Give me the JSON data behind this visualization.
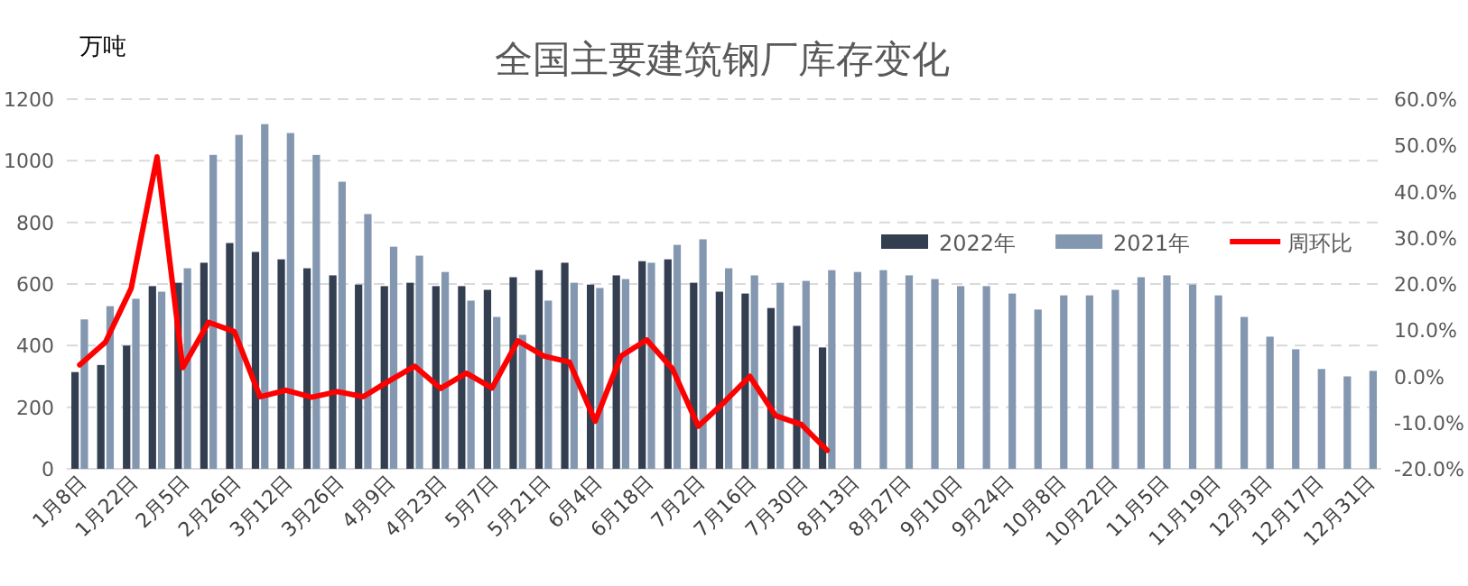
{
  "chart_data": {
    "type": "bar",
    "title": "全国主要建筑钢厂库存变化",
    "ylabel": "万吨",
    "categories": [
      "1月8日",
      null,
      "1月22日",
      null,
      "2月5日",
      null,
      "2月26日",
      null,
      "3月12日",
      null,
      "3月26日",
      null,
      "4月9日",
      null,
      "4月23日",
      null,
      "5月7日",
      null,
      "5月21日",
      null,
      "6月4日",
      null,
      "6月18日",
      null,
      "7月2日",
      null,
      "7月16日",
      null,
      "7月30日",
      null,
      "8月13日",
      null,
      "8月27日",
      null,
      "9月10日",
      null,
      "9月24日",
      null,
      "10月8日",
      null,
      "10月22日",
      null,
      "11月5日",
      null,
      "11月19日",
      null,
      "12月3日",
      null,
      "12月17日",
      null,
      "12月31日"
    ],
    "series": [
      {
        "name": "2022年",
        "color": "#333f50",
        "values": [
          314,
          337,
          400,
          593,
          604,
          669,
          733,
          704,
          680,
          651,
          628,
          598,
          593,
          604,
          593,
          593,
          581,
          622,
          645,
          669,
          598,
          628,
          674,
          680,
          604,
          575,
          569,
          522,
          464,
          394,
          null,
          null,
          null,
          null,
          null,
          null,
          null,
          null,
          null,
          null,
          null,
          null,
          null,
          null,
          null,
          null,
          null,
          null,
          null,
          null,
          null
        ]
      },
      {
        "name": "2021年",
        "color": "#8497b0",
        "values": [
          485,
          528,
          552,
          575,
          651,
          1019,
          1084,
          1119,
          1090,
          1019,
          932,
          827,
          721,
          692,
          639,
          546,
          493,
          435,
          546,
          604,
          587,
          616,
          669,
          727,
          745,
          651,
          628,
          604,
          610,
          645,
          639,
          645,
          628,
          616,
          593,
          593,
          569,
          517,
          563,
          563,
          581,
          622,
          628,
          598,
          563,
          493,
          429,
          388,
          324,
          300,
          318
        ]
      },
      {
        "name": "周环比",
        "type": "line",
        "axis": "y2",
        "color": "#ff0000",
        "values": [
          2.5,
          7.4,
          19.1,
          47.5,
          1.9,
          11.7,
          9.7,
          -4.4,
          -3.0,
          -4.5,
          -3.3,
          -4.4,
          -1.0,
          2.2,
          -2.6,
          0.7,
          -2.5,
          7.7,
          4.4,
          3.1,
          -9.7,
          4.4,
          7.9,
          1.6,
          -10.8,
          -5.6,
          0.0,
          -8.5,
          -10.4,
          -16.0,
          null,
          null,
          null,
          null,
          null,
          null,
          null,
          null,
          null,
          null,
          null,
          null,
          null,
          null,
          null,
          null,
          null,
          null,
          null,
          null,
          null
        ]
      }
    ],
    "ylim": [
      0,
      1200
    ],
    "yticks": [
      0,
      200,
      400,
      600,
      800,
      1000,
      1200
    ],
    "y2lim": [
      -20,
      60
    ],
    "y2ticks": [
      {
        "value": -20,
        "label": "-20.0%"
      },
      {
        "value": -10,
        "label": "-10.0%"
      },
      {
        "value": 0,
        "label": "0.0%"
      },
      {
        "value": 10,
        "label": "10.0%"
      },
      {
        "value": 20,
        "label": "20.0%"
      },
      {
        "value": 30,
        "label": "30.0%"
      },
      {
        "value": 40,
        "label": "40.0%"
      },
      {
        "value": 50,
        "label": "50.0%"
      },
      {
        "value": 60,
        "label": "60.0%"
      }
    ],
    "grid": "y",
    "legend": "top right"
  }
}
